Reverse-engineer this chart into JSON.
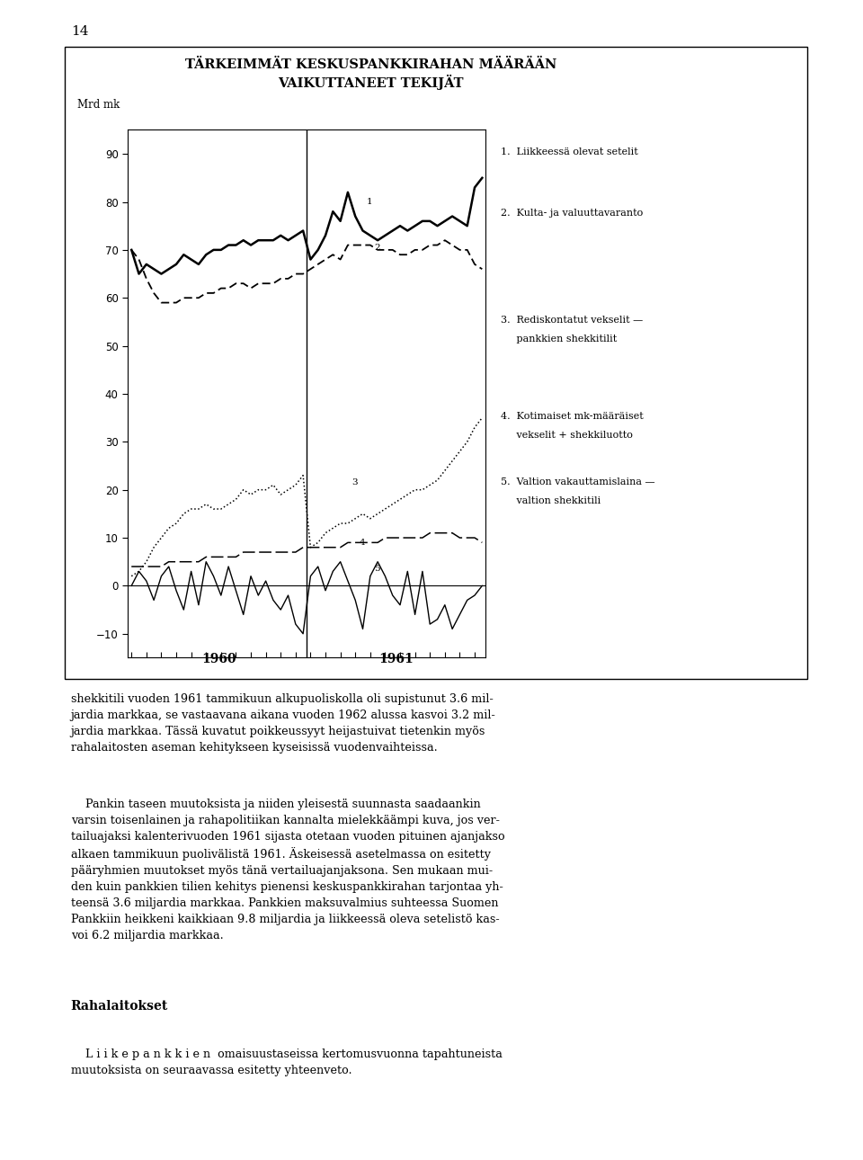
{
  "title_line1": "TÄRKEIMMÄT KESKUSPANKKIRAHAN MÄÄRÄÄN",
  "title_line2": "VAIKUTTANEET TEKIJÄT",
  "ylabel": "Mrd mk",
  "ylim": [
    -15,
    95
  ],
  "yticks": [
    -10,
    0,
    10,
    20,
    30,
    40,
    50,
    60,
    70,
    80,
    90
  ],
  "page_number": "14",
  "legend1": "1.  Liikkeessä olevat setelit",
  "legend2": "2.  Kulta- ja valuuttavaranto",
  "legend3a": "3.  Rediskontatut vekselit —",
  "legend3b": "     pankkien shekkitilit",
  "legend4a": "4.  Kotimaiset mk-määräiset",
  "legend4b": "     vekselit + shekkiluotto",
  "legend5a": "5.  Valtion vakauttamislaina —",
  "legend5b": "     valtion shekkitili",
  "body1": "shekkitili vuoden 1961 tammikuun alkupuoliskolla oli supistunut 3.6 mil-\njardia markkaa, se vastaavana aikana vuoden 1962 alussa kasvoi 3.2 mil-\njardia markkaa. Tässä kuvatut poikkeussyyt heijastuivat tietenkin myös\nrahalaitosten aseman kehitykseen kyseisissä vuodenvaihteissa.",
  "body2": "    Pankin taseen muutoksista ja niiden yleisestä suunnasta saadaankin\nvarsin toisenlainen ja rahapolitiikan kannalta mielekkäämpi kuva, jos ver-\ntailuajaksi kalenterivuoden 1961 sijasta otetaan vuoden pituinen ajanjakso\nalkaen tammikuun puolivälistä 1961. Äskeisessä asetelmassa on esitetty\npääryhmien muutokset myös tänä vertailuajanjaksona. Sen mukaan mui-\nden kuin pankkien tilien kehitys pienensi keskuspankkirahan tarjontaa yh-\nteensä 3.6 miljardia markkaa. Pankkien maksuvalmius suhteessa Suomen\nPankkiin heikkeni kaikkiaan 9.8 miljardia ja liikkeessä oleva setelistö kas-\nvoi 6.2 miljardia markkaa.",
  "section_header": "Rahalaitokset",
  "body3": "    L i i k e p a n k k i e n  omaisuustaseissa kertomusvuonna tapahtuneista\nmuutoksista on seuraavassa esitetty yhteenveto.",
  "s1": [
    70,
    65,
    67,
    66,
    65,
    66,
    67,
    69,
    68,
    67,
    69,
    70,
    70,
    71,
    71,
    72,
    71,
    72,
    72,
    72,
    73,
    72,
    73,
    74,
    68,
    70,
    73,
    78,
    76,
    82,
    77,
    74,
    73,
    72,
    73,
    74,
    75,
    74,
    75,
    76,
    76,
    75,
    76,
    77,
    76,
    75,
    83,
    85
  ],
  "s2": [
    70,
    68,
    64,
    61,
    59,
    59,
    59,
    60,
    60,
    60,
    61,
    61,
    62,
    62,
    63,
    63,
    62,
    63,
    63,
    63,
    64,
    64,
    65,
    65,
    66,
    67,
    68,
    69,
    68,
    71,
    71,
    71,
    71,
    70,
    70,
    70,
    69,
    69,
    70,
    70,
    71,
    71,
    72,
    71,
    70,
    70,
    67,
    66
  ],
  "s3": [
    2,
    3,
    5,
    8,
    10,
    12,
    13,
    15,
    16,
    16,
    17,
    16,
    16,
    17,
    18,
    20,
    19,
    20,
    20,
    21,
    19,
    20,
    21,
    23,
    8,
    9,
    11,
    12,
    13,
    13,
    14,
    15,
    14,
    15,
    16,
    17,
    18,
    19,
    20,
    20,
    21,
    22,
    24,
    26,
    28,
    30,
    33,
    35
  ],
  "s4": [
    4,
    4,
    4,
    4,
    4,
    5,
    5,
    5,
    5,
    5,
    6,
    6,
    6,
    6,
    6,
    7,
    7,
    7,
    7,
    7,
    7,
    7,
    7,
    8,
    8,
    8,
    8,
    8,
    8,
    9,
    9,
    9,
    9,
    9,
    10,
    10,
    10,
    10,
    10,
    10,
    11,
    11,
    11,
    11,
    10,
    10,
    10,
    9
  ],
  "s5": [
    0,
    3,
    1,
    -3,
    2,
    4,
    -1,
    -5,
    3,
    -4,
    5,
    2,
    -2,
    4,
    -1,
    -6,
    2,
    -2,
    1,
    -3,
    -5,
    -2,
    -8,
    -10,
    2,
    4,
    -1,
    3,
    5,
    1,
    -3,
    -9,
    2,
    5,
    2,
    -2,
    -4,
    3,
    -6,
    3,
    -8,
    -7,
    -4,
    -9,
    -6,
    -3,
    -2,
    0
  ]
}
